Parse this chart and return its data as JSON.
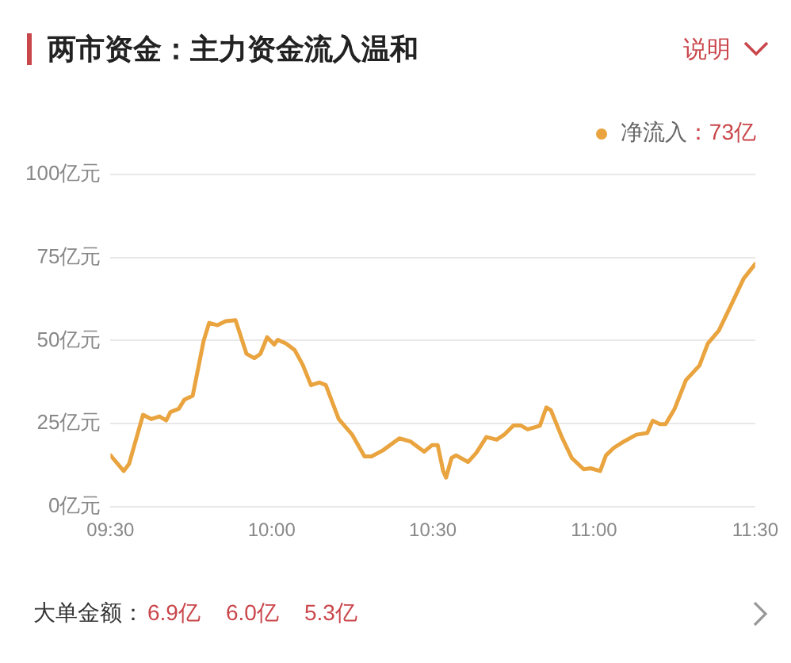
{
  "chart_data": {
    "type": "line",
    "title": "两市资金：主力资金流入温和",
    "subtitle": "说明",
    "xlim": [
      9.5,
      11.5
    ],
    "xticks": [
      {
        "value": 9.5,
        "label": "09:30"
      },
      {
        "value": 10,
        "label": "10:00"
      },
      {
        "value": 10.5,
        "label": "10:30"
      },
      {
        "value": 11,
        "label": "11:00"
      },
      {
        "value": 11.5,
        "label": "11:30"
      }
    ],
    "ylim": [
      0,
      100
    ],
    "yticks": [
      {
        "value": 0,
        "label": "0亿元"
      },
      {
        "value": 25,
        "label": "25亿元"
      },
      {
        "value": 50,
        "label": "50亿元"
      },
      {
        "value": 75,
        "label": "75亿元"
      },
      {
        "value": 100,
        "label": "100亿元"
      }
    ],
    "grid": "y",
    "legend": "top right",
    "marker": "none",
    "line_style": "solid",
    "annotations": [
      "：73亿",
      "大单金额：",
      "6.9亿",
      "6.0亿",
      "5.3亿"
    ],
    "series": [
      {
        "name": "净流入",
        "color": "#e9a43f",
        "x": [
          9.5,
          9.541,
          9.558,
          9.601,
          9.627,
          9.652,
          9.673,
          9.686,
          9.712,
          9.729,
          9.755,
          9.789,
          9.806,
          9.832,
          9.857,
          9.888,
          9.922,
          9.946,
          9.965,
          9.986,
          10.008,
          10.019,
          10.045,
          10.071,
          10.096,
          10.122,
          10.148,
          10.168,
          10.208,
          10.25,
          10.288,
          10.31,
          10.345,
          10.396,
          10.43,
          10.473,
          10.498,
          10.515,
          10.532,
          10.541,
          10.558,
          10.572,
          10.609,
          10.635,
          10.666,
          10.698,
          10.721,
          10.75,
          10.772,
          10.794,
          10.832,
          10.852,
          10.866,
          10.9,
          10.931,
          10.968,
          10.989,
          11.019,
          11.037,
          11.062,
          11.088,
          11.131,
          11.165,
          11.182,
          11.204,
          11.222,
          11.25,
          11.285,
          11.327,
          11.353,
          11.387,
          11.422,
          11.464,
          11.5
        ],
        "values": [
          15.5,
          10.8,
          13,
          27.7,
          26.4,
          27.2,
          26,
          28.5,
          29.5,
          32.2,
          33.4,
          49.9,
          55.3,
          54.6,
          55.8,
          56.1,
          46,
          44.7,
          46,
          51,
          48.8,
          50.2,
          49.1,
          47.2,
          42.8,
          36.6,
          37.4,
          36.6,
          26.4,
          21.7,
          15.2,
          15.2,
          17,
          20.6,
          19.7,
          16.6,
          18.6,
          18.6,
          10.8,
          8.8,
          14.7,
          15.5,
          13.5,
          16.3,
          21,
          20.2,
          21.7,
          24.5,
          24.5,
          23.3,
          24.4,
          29.9,
          29.1,
          21,
          14.7,
          11.3,
          11.6,
          10.8,
          15.5,
          17.8,
          19.4,
          21.7,
          22.2,
          25.9,
          24.9,
          24.9,
          29.5,
          38.1,
          42.5,
          49.1,
          53,
          60,
          68.6,
          73
        ]
      }
    ]
  }
}
